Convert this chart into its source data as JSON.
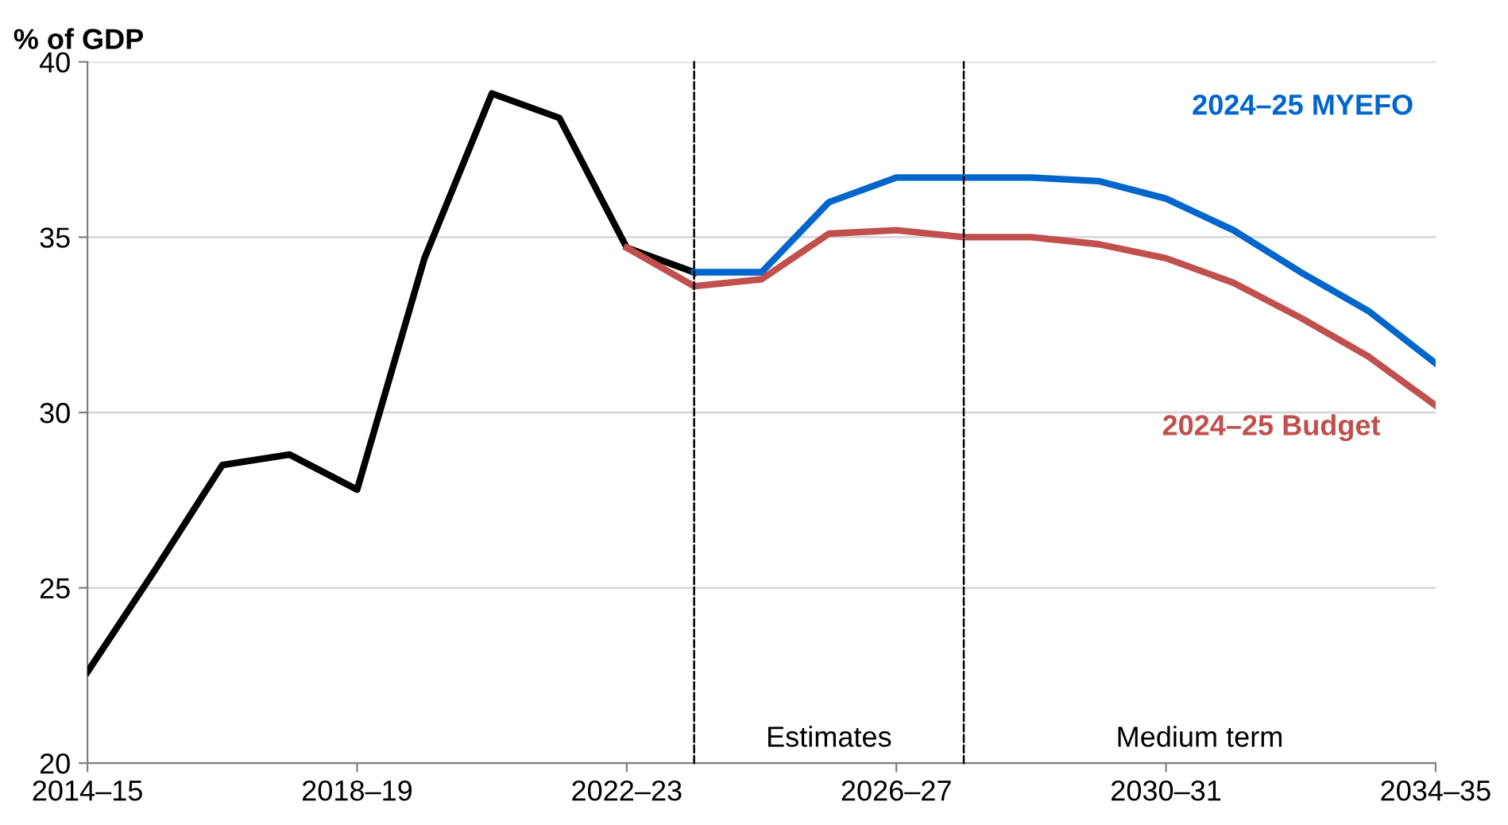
{
  "chart_data": {
    "type": "line",
    "ylabel": "% of GDP",
    "categories": [
      "2014–15",
      null,
      null,
      null,
      "2018–19",
      null,
      null,
      null,
      "2022–23",
      null,
      null,
      null,
      "2026–27",
      null,
      null,
      null,
      "2030–31",
      null,
      null,
      null,
      "2034–35"
    ],
    "series": [
      {
        "color": "#000000",
        "values": [
          22.6,
          25.5,
          28.5,
          28.8,
          27.8,
          34.4,
          39.1,
          38.4,
          34.7,
          34.0,
          null,
          null,
          null,
          null,
          null,
          null,
          null,
          null,
          null,
          null,
          null
        ]
      },
      {
        "name": "2024–25 MYEFO",
        "color": "#0066cc",
        "values": [
          null,
          null,
          null,
          null,
          null,
          null,
          null,
          null,
          null,
          34.0,
          34.0,
          36.0,
          36.7,
          36.7,
          36.7,
          36.6,
          36.1,
          35.2,
          34.0,
          32.9,
          31.4
        ]
      },
      {
        "name": "2024–25 Budget",
        "color": "#c0504d",
        "values": [
          null,
          null,
          null,
          null,
          null,
          null,
          null,
          null,
          34.7,
          33.6,
          33.8,
          35.1,
          35.2,
          35.0,
          35.0,
          34.8,
          34.4,
          33.7,
          32.7,
          31.6,
          30.2
        ]
      }
    ],
    "ylim": [
      20,
      40
    ],
    "yticks": [
      20,
      25,
      30,
      35,
      40
    ],
    "grid": "y",
    "legend": false,
    "marker": "none",
    "line_style": "solid",
    "annotations": [
      "Estimates",
      "Medium term"
    ]
  }
}
